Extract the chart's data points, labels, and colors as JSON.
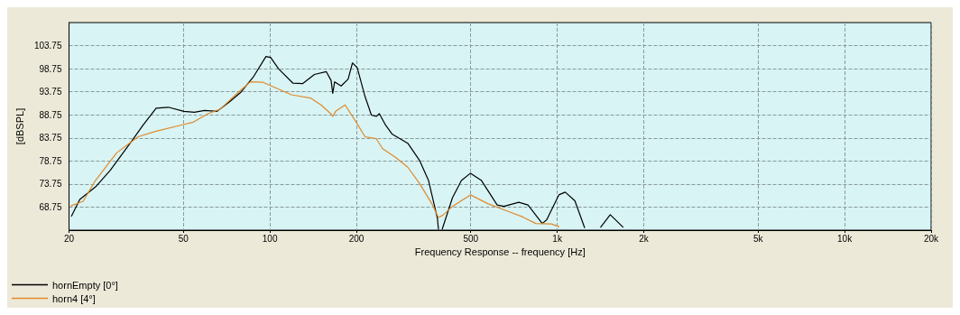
{
  "chart_data": {
    "type": "line",
    "xlabel": "Frequency Response -- frequency [Hz]",
    "ylabel": "[dBSPL]",
    "log": "x",
    "xlim": [
      20,
      20000
    ],
    "xticks": [
      20,
      50,
      100,
      200,
      500,
      {
        "value": 1000,
        "label": "1k"
      },
      {
        "value": 2000,
        "label": "2k"
      },
      {
        "value": 5000,
        "label": "5k"
      },
      {
        "value": 10000,
        "label": "10k"
      },
      {
        "value": 20000,
        "label": "20k"
      }
    ],
    "ylim": [
      63.75,
      108.75
    ],
    "yticks": [
      68.75,
      73.75,
      78.75,
      83.75,
      88.75,
      93.75,
      98.75,
      103.75
    ],
    "grid": true,
    "legend": "bottom",
    "line_style": "solid",
    "marker": "none",
    "series": [
      {
        "name": "hornEmpty [0°]",
        "color": "#000000",
        "x": [
          20.4,
          21.8,
          24.9,
          27.8,
          33.0,
          36.2,
          40.2,
          44.3,
          50.2,
          54.6,
          59.3,
          65.5,
          72.1,
          79.4,
          87.9,
          96.9,
          100.6,
          107.3,
          120.4,
          129.9,
          142.9,
          157.2,
          163.3,
          165.5,
          168,
          177,
          187.2,
          193.8,
          201.3,
          214.4,
          225.6,
          234.4,
          240.4,
          252.8,
          266,
          301.9,
          331.6,
          356.6,
          382.8,
          386,
          392,
          398,
          432,
          464,
          499,
          545,
          618,
          652,
          735,
          791,
          887,
          919,
          1013,
          1066,
          1152,
          1245,
          1330,
          1417,
          1529,
          1693
        ],
        "values": [
          66.8,
          70.4,
          73.3,
          76.7,
          83.0,
          86.5,
          90.2,
          90.4,
          89.5,
          89.3,
          89.7,
          89.5,
          91.5,
          93.7,
          97.1,
          101.4,
          101.2,
          98.7,
          95.6,
          95.5,
          97.5,
          98.1,
          96.2,
          93.4,
          95.9,
          95.0,
          96.5,
          100.0,
          99.0,
          92.7,
          88.7,
          88.4,
          89.0,
          86.5,
          84.6,
          82.6,
          78.9,
          74.5,
          66.3,
          64,
          null,
          64,
          70.8,
          74.5,
          76.1,
          74.5,
          69.2,
          68.9,
          69.8,
          69.2,
          65.2,
          66.0,
          71.4,
          72.0,
          70.1,
          64.3,
          null,
          64.4,
          67.1,
          64.4
        ]
      },
      {
        "name": "horn4 [4°]",
        "color": "#e08a2c",
        "x": [
          20.3,
          22.4,
          24.7,
          29.3,
          34.8,
          40.2,
          48.9,
          53.8,
          60.9,
          67.2,
          76.9,
          85.5,
          94.7,
          104.6,
          118.8,
          138.4,
          150.7,
          162.9,
          165.5,
          169.8,
          182.7,
          201.3,
          214.4,
          234.4,
          246.7,
          272.8,
          301.9,
          331.6,
          366,
          386,
          400,
          432,
          499,
          573,
          669,
          759,
          842,
          955,
          1013
        ],
        "values": [
          69.0,
          70.0,
          74.5,
          80.5,
          84.0,
          85.2,
          86.5,
          87.1,
          89.0,
          90.0,
          93.4,
          95.9,
          95.8,
          94.6,
          93.1,
          92.4,
          90.9,
          89.0,
          88.4,
          89.6,
          90.9,
          86.8,
          84.0,
          83.6,
          81.4,
          79.6,
          77.4,
          73.9,
          69.5,
          66.5,
          67.0,
          68.9,
          71.4,
          69.5,
          67.9,
          66.6,
          65.2,
          65.1,
          64.5
        ]
      }
    ]
  }
}
